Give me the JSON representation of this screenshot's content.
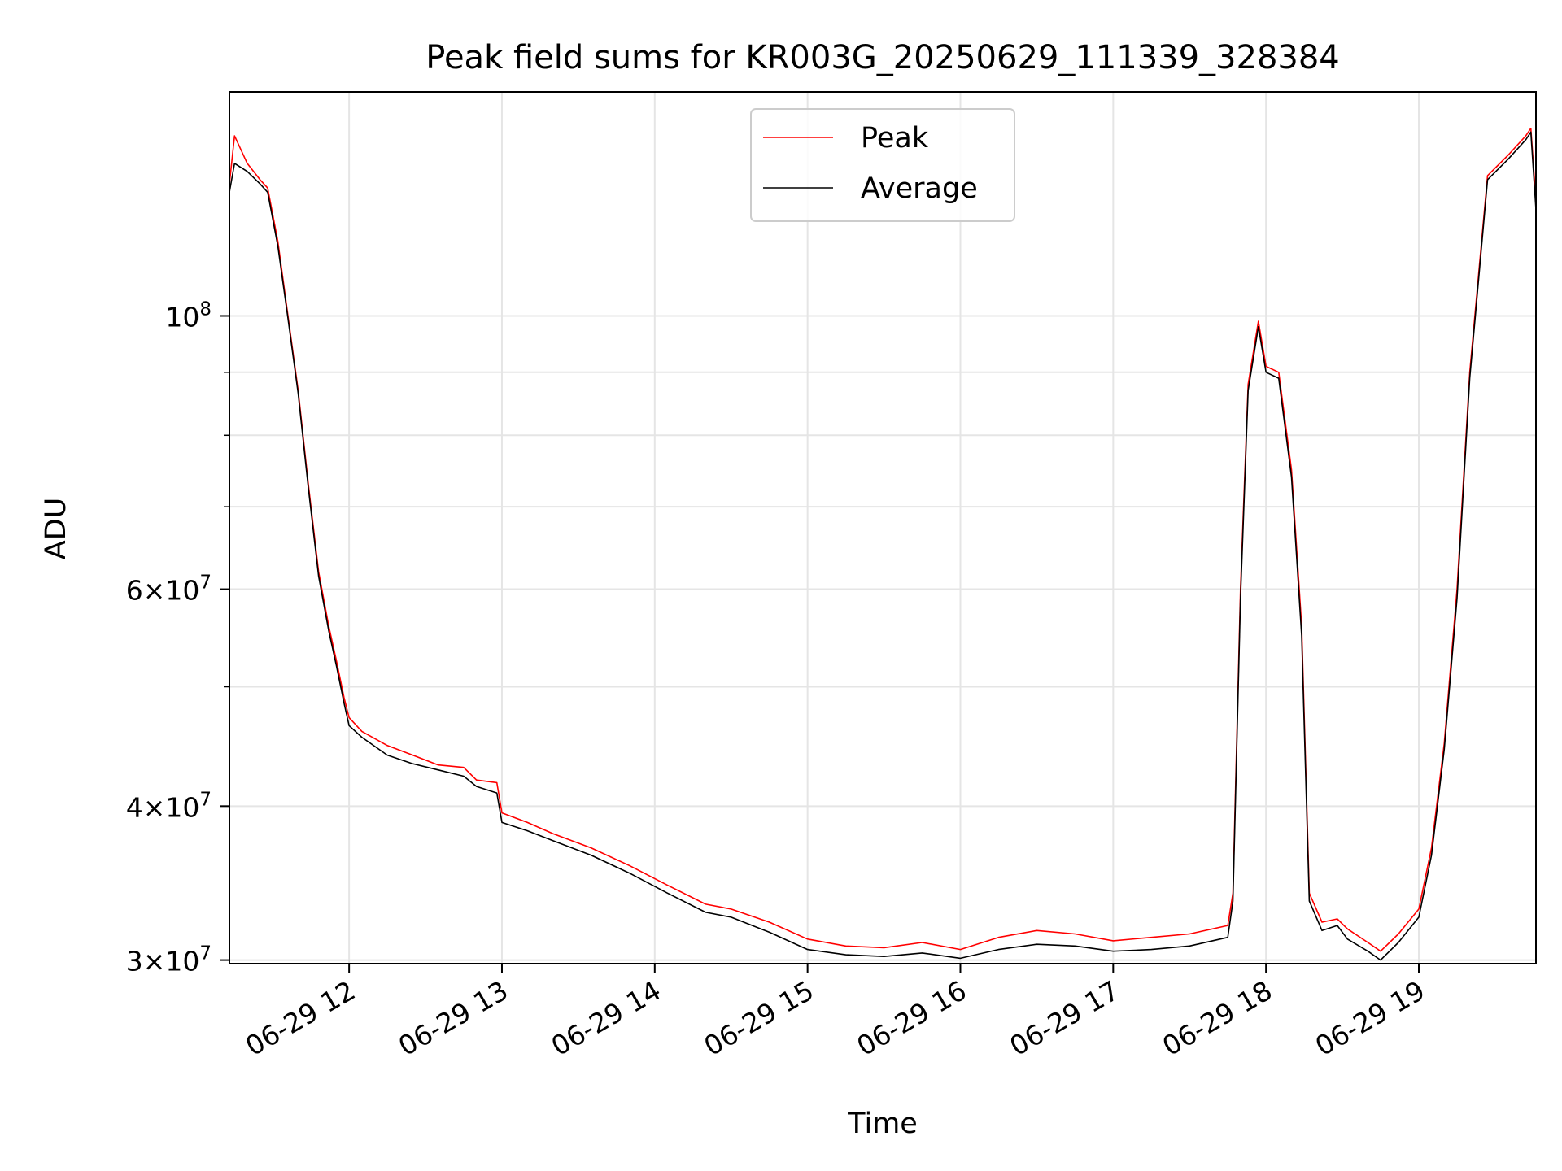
{
  "chart_data": {
    "type": "line",
    "title": "Peak field sums for KR003G_20250629_111339_328384",
    "xlabel": "Time",
    "ylabel": "ADU",
    "yscale": "log",
    "xlim": [
      "2025-06-29 11:13",
      "2025-06-29 19:46"
    ],
    "ylim": [
      29800000,
      152000000
    ],
    "grid": true,
    "legend_position": "top-center",
    "x_ticks": [
      {
        "x": "2025-06-29 12:00",
        "label": "06-29 12"
      },
      {
        "x": "2025-06-29 13:00",
        "label": "06-29 13"
      },
      {
        "x": "2025-06-29 14:00",
        "label": "06-29 14"
      },
      {
        "x": "2025-06-29 15:00",
        "label": "06-29 15"
      },
      {
        "x": "2025-06-29 16:00",
        "label": "06-29 16"
      },
      {
        "x": "2025-06-29 17:00",
        "label": "06-29 17"
      },
      {
        "x": "2025-06-29 18:00",
        "label": "06-29 18"
      },
      {
        "x": "2025-06-29 19:00",
        "label": "06-29 19"
      }
    ],
    "y_ticks": [
      {
        "y": 30000000,
        "mant": "3",
        "exp": "7"
      },
      {
        "y": 40000000,
        "mant": "4",
        "exp": "7"
      },
      {
        "y": 60000000,
        "mant": "6",
        "exp": "7"
      },
      {
        "y": 100000000,
        "mant": "",
        "exp": "8"
      }
    ],
    "y_minor": [
      50000000,
      70000000,
      80000000,
      90000000
    ],
    "series": [
      {
        "name": "Peak",
        "color": "#ff0000",
        "points": [
          [
            "2025-06-29 11:13",
            128000000
          ],
          [
            "2025-06-29 11:15",
            140000000
          ],
          [
            "2025-06-29 11:20",
            133000000
          ],
          [
            "2025-06-29 11:25",
            129000000
          ],
          [
            "2025-06-29 11:28",
            127000000
          ],
          [
            "2025-06-29 11:32",
            115000000
          ],
          [
            "2025-06-29 11:36",
            100000000
          ],
          [
            "2025-06-29 11:40",
            87000000
          ],
          [
            "2025-06-29 11:44",
            73000000
          ],
          [
            "2025-06-29 11:48",
            62000000
          ],
          [
            "2025-06-29 11:52",
            56000000
          ],
          [
            "2025-06-29 11:55",
            52500000
          ],
          [
            "2025-06-29 11:58",
            49000000
          ],
          [
            "2025-06-29 12:00",
            47200000
          ],
          [
            "2025-06-29 12:05",
            46000000
          ],
          [
            "2025-06-29 12:15",
            44800000
          ],
          [
            "2025-06-29 12:25",
            44000000
          ],
          [
            "2025-06-29 12:35",
            43200000
          ],
          [
            "2025-06-29 12:45",
            43000000
          ],
          [
            "2025-06-29 12:50",
            42000000
          ],
          [
            "2025-06-29 12:58",
            41800000
          ],
          [
            "2025-06-29 13:00",
            39500000
          ],
          [
            "2025-06-29 13:10",
            38800000
          ],
          [
            "2025-06-29 13:20",
            38000000
          ],
          [
            "2025-06-29 13:35",
            37000000
          ],
          [
            "2025-06-29 13:50",
            35800000
          ],
          [
            "2025-06-29 14:05",
            34500000
          ],
          [
            "2025-06-29 14:20",
            33300000
          ],
          [
            "2025-06-29 14:30",
            33000000
          ],
          [
            "2025-06-29 14:45",
            32200000
          ],
          [
            "2025-06-29 15:00",
            31200000
          ],
          [
            "2025-06-29 15:15",
            30800000
          ],
          [
            "2025-06-29 15:30",
            30700000
          ],
          [
            "2025-06-29 15:45",
            31000000
          ],
          [
            "2025-06-29 16:00",
            30600000
          ],
          [
            "2025-06-29 16:15",
            31300000
          ],
          [
            "2025-06-29 16:30",
            31700000
          ],
          [
            "2025-06-29 16:45",
            31500000
          ],
          [
            "2025-06-29 17:00",
            31100000
          ],
          [
            "2025-06-29 17:15",
            31300000
          ],
          [
            "2025-06-29 17:30",
            31500000
          ],
          [
            "2025-06-29 17:45",
            32000000
          ],
          [
            "2025-06-29 17:47",
            34000000
          ],
          [
            "2025-06-29 17:50",
            60000000
          ],
          [
            "2025-06-29 17:53",
            88000000
          ],
          [
            "2025-06-29 17:57",
            99000000
          ],
          [
            "2025-06-29 18:00",
            91000000
          ],
          [
            "2025-06-29 18:05",
            90000000
          ],
          [
            "2025-06-29 18:10",
            75000000
          ],
          [
            "2025-06-29 18:14",
            56000000
          ],
          [
            "2025-06-29 18:17",
            34000000
          ],
          [
            "2025-06-29 18:22",
            32200000
          ],
          [
            "2025-06-29 18:28",
            32400000
          ],
          [
            "2025-06-29 18:32",
            31800000
          ],
          [
            "2025-06-29 18:40",
            31000000
          ],
          [
            "2025-06-29 18:45",
            30500000
          ],
          [
            "2025-06-29 18:52",
            31500000
          ],
          [
            "2025-06-29 19:00",
            33000000
          ],
          [
            "2025-06-29 19:05",
            37000000
          ],
          [
            "2025-06-29 19:10",
            45000000
          ],
          [
            "2025-06-29 19:15",
            60000000
          ],
          [
            "2025-06-29 19:20",
            90000000
          ],
          [
            "2025-06-29 19:27",
            130000000
          ],
          [
            "2025-06-29 19:35",
            135000000
          ],
          [
            "2025-06-29 19:42",
            140000000
          ],
          [
            "2025-06-29 19:44",
            142000000
          ],
          [
            "2025-06-29 19:46",
            124000000
          ]
        ]
      },
      {
        "name": "Average",
        "color": "#000000",
        "points": [
          [
            "2025-06-29 11:13",
            126000000
          ],
          [
            "2025-06-29 11:15",
            133000000
          ],
          [
            "2025-06-29 11:20",
            131000000
          ],
          [
            "2025-06-29 11:25",
            128000000
          ],
          [
            "2025-06-29 11:28",
            126000000
          ],
          [
            "2025-06-29 11:32",
            114000000
          ],
          [
            "2025-06-29 11:36",
            99500000
          ],
          [
            "2025-06-29 11:40",
            86500000
          ],
          [
            "2025-06-29 11:44",
            72500000
          ],
          [
            "2025-06-29 11:48",
            61500000
          ],
          [
            "2025-06-29 11:52",
            55500000
          ],
          [
            "2025-06-29 11:55",
            52000000
          ],
          [
            "2025-06-29 11:58",
            48500000
          ],
          [
            "2025-06-29 12:00",
            46500000
          ],
          [
            "2025-06-29 12:05",
            45500000
          ],
          [
            "2025-06-29 12:15",
            44000000
          ],
          [
            "2025-06-29 12:25",
            43300000
          ],
          [
            "2025-06-29 12:35",
            42800000
          ],
          [
            "2025-06-29 12:45",
            42300000
          ],
          [
            "2025-06-29 12:50",
            41500000
          ],
          [
            "2025-06-29 12:58",
            41000000
          ],
          [
            "2025-06-29 13:00",
            38800000
          ],
          [
            "2025-06-29 13:10",
            38200000
          ],
          [
            "2025-06-29 13:20",
            37500000
          ],
          [
            "2025-06-29 13:35",
            36500000
          ],
          [
            "2025-06-29 13:50",
            35300000
          ],
          [
            "2025-06-29 14:05",
            34000000
          ],
          [
            "2025-06-29 14:20",
            32800000
          ],
          [
            "2025-06-29 14:30",
            32500000
          ],
          [
            "2025-06-29 14:45",
            31600000
          ],
          [
            "2025-06-29 15:00",
            30600000
          ],
          [
            "2025-06-29 15:15",
            30300000
          ],
          [
            "2025-06-29 15:30",
            30200000
          ],
          [
            "2025-06-29 15:45",
            30400000
          ],
          [
            "2025-06-29 16:00",
            30100000
          ],
          [
            "2025-06-29 16:15",
            30600000
          ],
          [
            "2025-06-29 16:30",
            30900000
          ],
          [
            "2025-06-29 16:45",
            30800000
          ],
          [
            "2025-06-29 17:00",
            30500000
          ],
          [
            "2025-06-29 17:15",
            30600000
          ],
          [
            "2025-06-29 17:30",
            30800000
          ],
          [
            "2025-06-29 17:45",
            31300000
          ],
          [
            "2025-06-29 17:47",
            33500000
          ],
          [
            "2025-06-29 17:50",
            59000000
          ],
          [
            "2025-06-29 17:53",
            87000000
          ],
          [
            "2025-06-29 17:57",
            98000000
          ],
          [
            "2025-06-29 18:00",
            90000000
          ],
          [
            "2025-06-29 18:05",
            89000000
          ],
          [
            "2025-06-29 18:10",
            74000000
          ],
          [
            "2025-06-29 18:14",
            55000000
          ],
          [
            "2025-06-29 18:17",
            33500000
          ],
          [
            "2025-06-29 18:22",
            31700000
          ],
          [
            "2025-06-29 18:28",
            32000000
          ],
          [
            "2025-06-29 18:32",
            31200000
          ],
          [
            "2025-06-29 18:40",
            30500000
          ],
          [
            "2025-06-29 18:45",
            30000000
          ],
          [
            "2025-06-29 18:52",
            31000000
          ],
          [
            "2025-06-29 19:00",
            32500000
          ],
          [
            "2025-06-29 19:05",
            36500000
          ],
          [
            "2025-06-29 19:10",
            44500000
          ],
          [
            "2025-06-29 19:15",
            59000000
          ],
          [
            "2025-06-29 19:20",
            89000000
          ],
          [
            "2025-06-29 19:27",
            129000000
          ],
          [
            "2025-06-29 19:35",
            134000000
          ],
          [
            "2025-06-29 19:42",
            139000000
          ],
          [
            "2025-06-29 19:44",
            141000000
          ],
          [
            "2025-06-29 19:46",
            122000000
          ]
        ]
      }
    ]
  }
}
